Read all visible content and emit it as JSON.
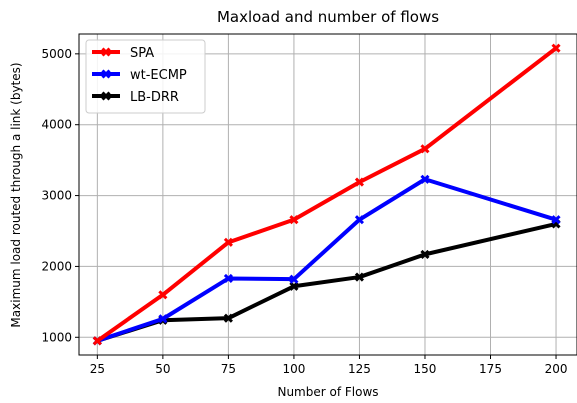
{
  "chart_data": {
    "type": "line",
    "title": "Maxload and number of flows",
    "xlabel": "Number of Flows",
    "ylabel": "Maximum load routed through a link (bytes)",
    "xlim": [
      18,
      208
    ],
    "ylim": [
      750,
      5280
    ],
    "x_ticks": [
      25,
      50,
      75,
      100,
      125,
      150,
      175,
      200
    ],
    "y_ticks": [
      1000,
      2000,
      3000,
      4000,
      5000
    ],
    "grid": true,
    "legend_position": "top-left",
    "series": [
      {
        "name": "SPA",
        "color": "#ff0000",
        "x": [
          25,
          50,
          75,
          100,
          125,
          150,
          200
        ],
        "y": [
          950,
          1600,
          2340,
          2660,
          3190,
          3660,
          5080
        ]
      },
      {
        "name": "wt-ECMP",
        "color": "#0000ff",
        "x": [
          25,
          50,
          75,
          100,
          125,
          150,
          200
        ],
        "y": [
          950,
          1260,
          1830,
          1820,
          2660,
          3230,
          2660
        ]
      },
      {
        "name": "LB-DRR",
        "color": "#000000",
        "x": [
          25,
          50,
          75,
          100,
          125,
          150,
          200
        ],
        "y": [
          950,
          1240,
          1270,
          1720,
          1850,
          2170,
          2600
        ]
      }
    ]
  }
}
